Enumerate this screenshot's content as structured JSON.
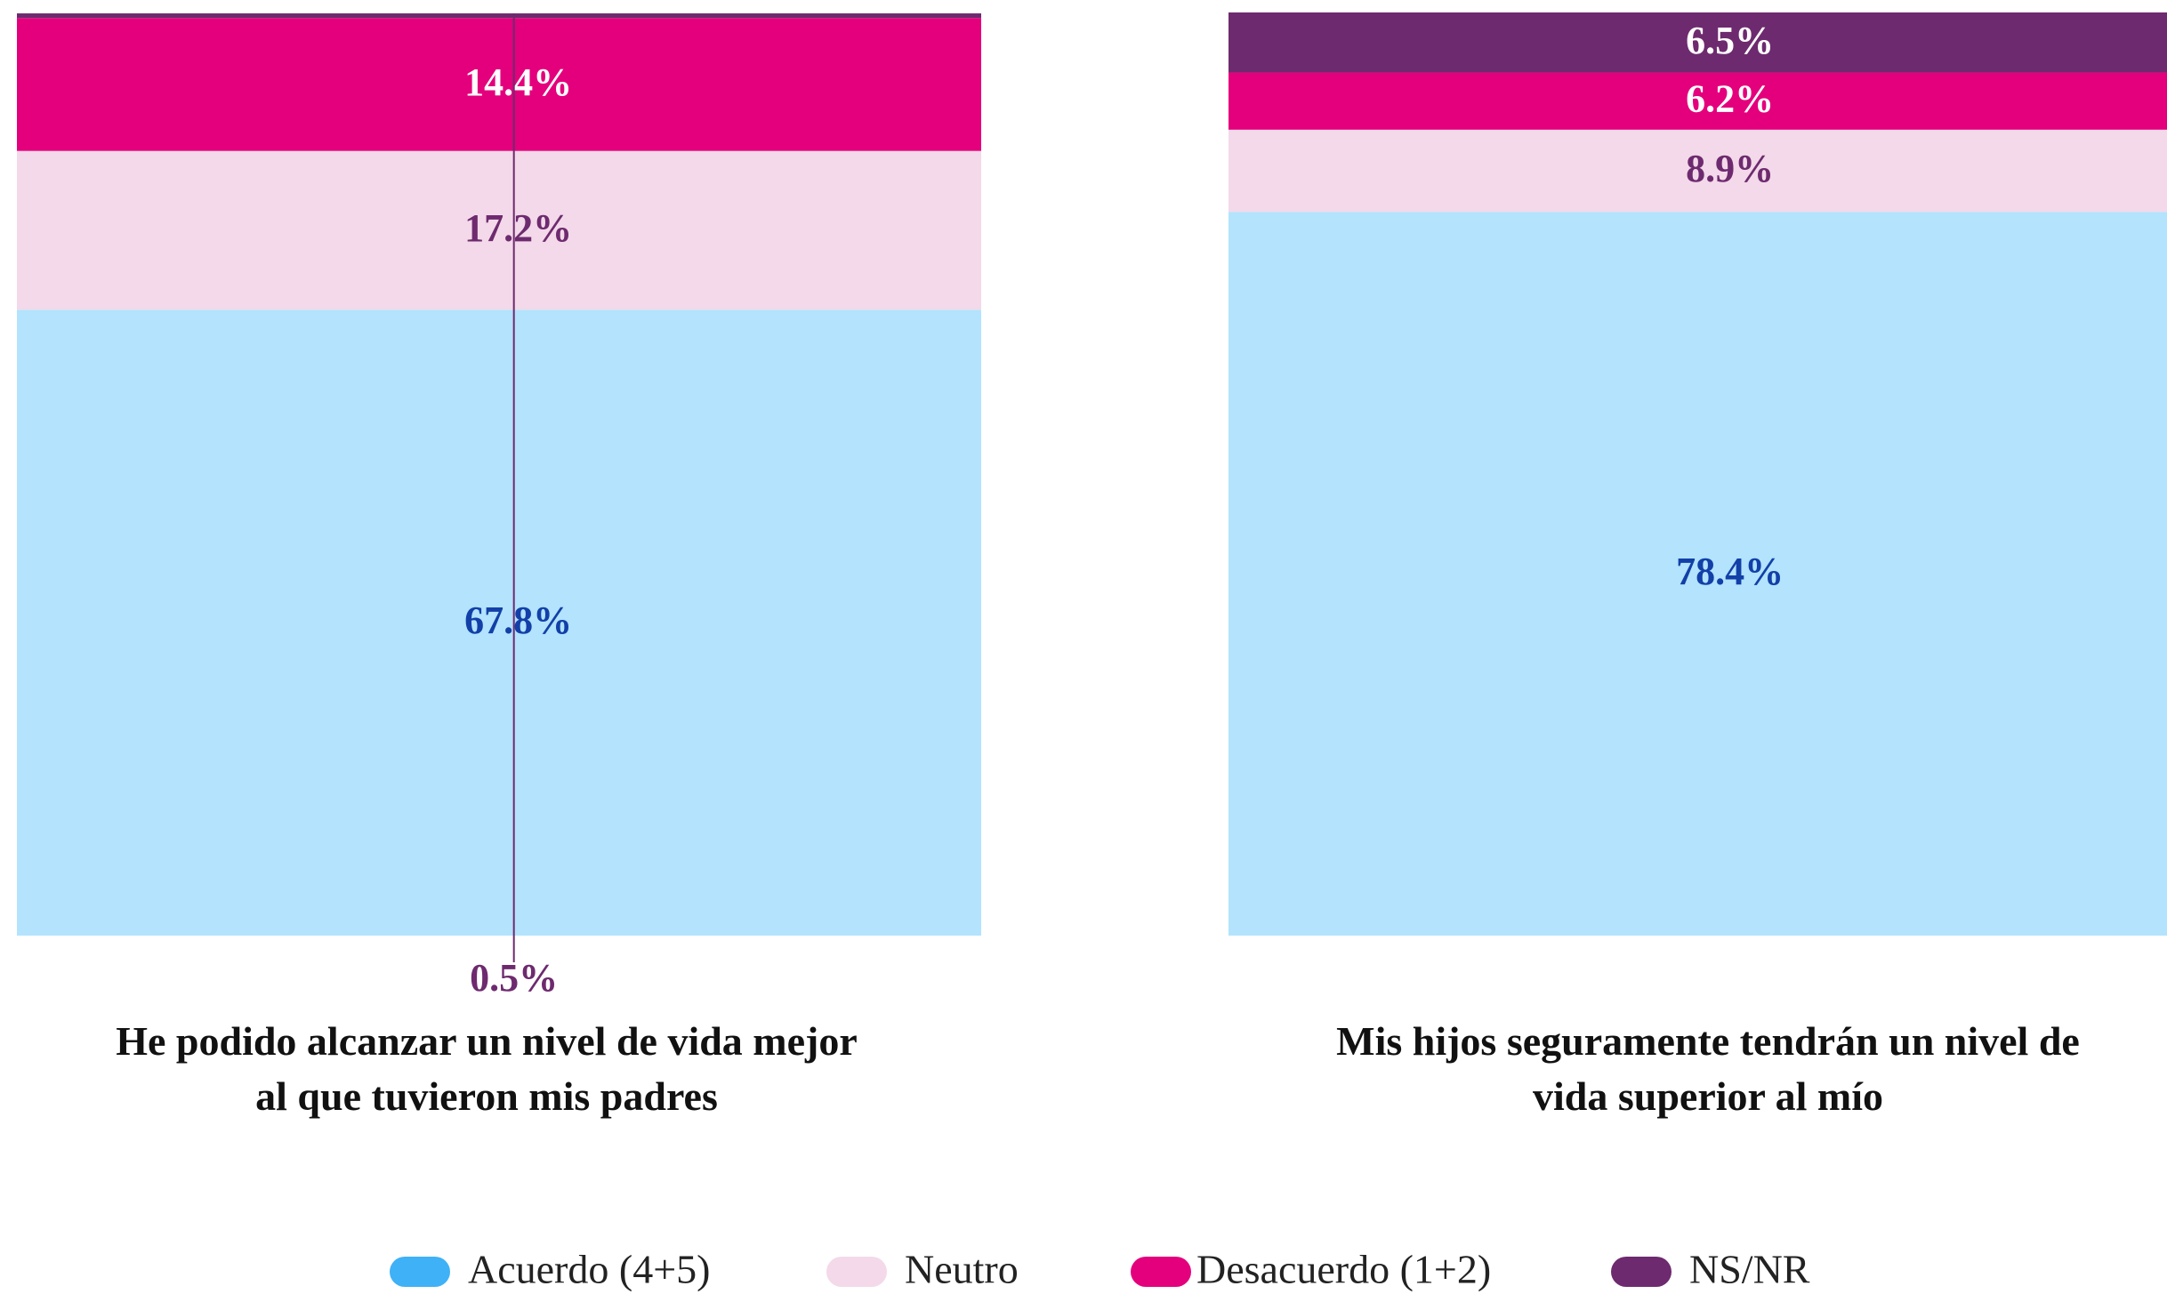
{
  "chart_data": {
    "type": "bar",
    "stacked": true,
    "categories": [
      "He podido alcanzar un nivel de vida mejor al que tuvieron mis padres",
      "Mis hijos seguramente tendrán un nivel de vida superior al mío"
    ],
    "ylim": [
      0,
      100
    ],
    "series": [
      {
        "name": "Acuerdo (4+5)",
        "color": "#b3e3fd",
        "legend_color": "#3fb1f7",
        "label_color": "#1240a8",
        "values": [
          67.8,
          78.4
        ],
        "value_labels": [
          "67.8%",
          "78.4%"
        ]
      },
      {
        "name": "Neutro",
        "color": "#f3d9e9",
        "legend_color": "#f3d9e9",
        "label_color": "#6e2a6f",
        "values": [
          17.2,
          8.9
        ],
        "value_labels": [
          "17.2%",
          "8.9%"
        ]
      },
      {
        "name": "Desacuerdo (1+2)",
        "color": "#e4007c",
        "legend_color": "#e4007c",
        "label_color": "#ffffff",
        "values": [
          14.4,
          6.2
        ],
        "value_labels": [
          "14.4%",
          "6.2%"
        ]
      },
      {
        "name": "NS/NR",
        "color": "#6e2a6f",
        "legend_color": "#6e2a6f",
        "label_color": "#ffffff",
        "values": [
          0.5,
          6.5
        ],
        "value_labels": [
          "0.5%",
          "6.5%"
        ]
      }
    ]
  }
}
